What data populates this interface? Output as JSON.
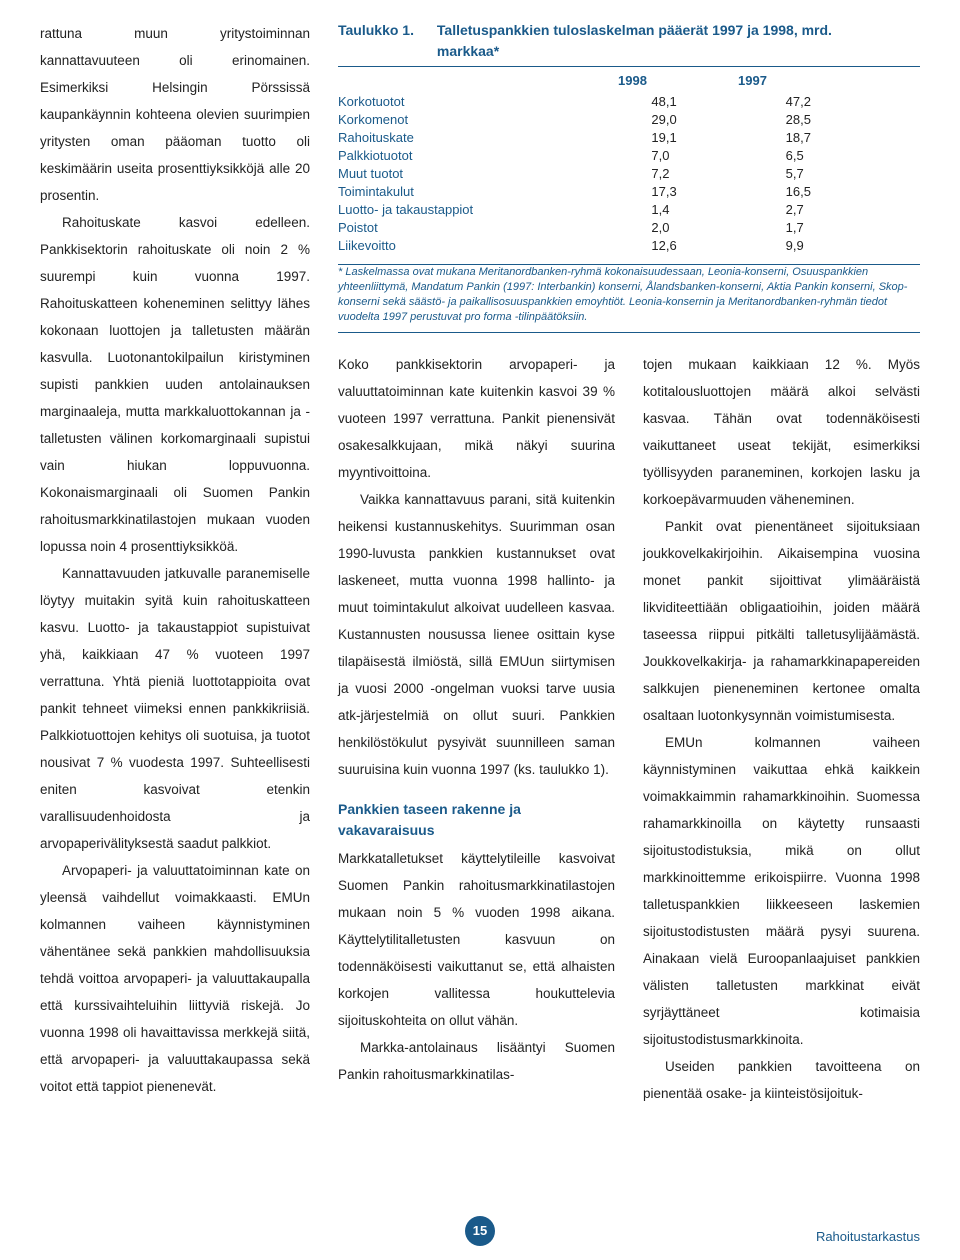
{
  "left_column": {
    "p1": "rattuna muun yritystoiminnan kannattavuuteen oli erinomainen. Esimerkiksi Helsingin Pörssissä kaupankäynnin kohteena olevien suurimpien yritysten oman pääoman tuotto oli keskimäärin useita prosenttiyksikköjä alle 20 prosentin.",
    "p2": "Rahoituskate kasvoi edelleen. Pankkisektorin rahoituskate oli noin 2 % suurempi kuin vuonna 1997. Rahoituskatteen koheneminen selittyy lähes kokonaan luottojen ja talletusten määrän kasvulla. Luotonantokilpailun kiristyminen supisti pankkien uuden antolainauksen marginaaleja, mutta markkaluottokannan ja -talletusten välinen korkomarginaali supistui vain hiukan loppuvuonna. Kokonaismarginaali oli Suomen Pankin rahoitusmarkkinatilastojen mukaan vuoden lopussa noin 4 prosenttiyksikköä.",
    "p3": "Kannattavuuden jatkuvalle paranemiselle löytyy muitakin syitä kuin rahoituskatteen kasvu. Luotto- ja takaustappiot supistuivat yhä, kaikkiaan 47 % vuoteen 1997 verrattuna. Yhtä pieniä luottotappioita ovat pankit tehneet viimeksi ennen pankkikriisiä. Palkkiotuottojen kehitys oli suotuisa, ja tuotot nousivat 7 % vuodesta 1997. Suhteellisesti eniten kasvoivat etenkin varallisuudenhoidosta ja arvopaperivälityksestä saadut palkkiot.",
    "p4": "Arvopaperi- ja valuuttatoiminnan kate on yleensä vaihdellut voimakkaasti. EMUn kolmannen vaiheen käynnistyminen vähentänee sekä pankkien mahdollisuuksia tehdä voittoa arvopaperi- ja valuuttakaupalla että kurssivaihteluihin liittyviä riskejä. Jo vuonna 1998 oli havaittavissa merkkejä siitä, että arvopaperi- ja valuuttakaupassa sekä voitot että tappiot pienenevät."
  },
  "table": {
    "title_prefix": "Taulukko 1.",
    "title_rest": "Talletuspankkien tuloslaskelman pääerät 1997 ja 1998, mrd. markkaa*",
    "year1": "1998",
    "year2": "1997",
    "rows": [
      {
        "label": "Korkotuotot",
        "v1": "48,1",
        "v2": "47,2"
      },
      {
        "label": "Korkomenot",
        "v1": "29,0",
        "v2": "28,5"
      },
      {
        "label": "Rahoituskate",
        "v1": "19,1",
        "v2": "18,7"
      },
      {
        "label": "Palkkiotuotot",
        "v1": "7,0",
        "v2": "6,5"
      },
      {
        "label": "Muut tuotot",
        "v1": "7,2",
        "v2": "5,7"
      },
      {
        "label": "Toimintakulut",
        "v1": "17,3",
        "v2": "16,5"
      },
      {
        "label": "Luotto- ja takaustappiot",
        "v1": "1,4",
        "v2": "2,7"
      },
      {
        "label": "Poistot",
        "v1": "2,0",
        "v2": "1,7"
      },
      {
        "label": "Liikevoitto",
        "v1": "12,6",
        "v2": "9,9"
      }
    ],
    "footnote": "* Laskelmassa ovat mukana Meritanordbanken-ryhmä kokonaisuudessaan, Leonia-konserni, Osuuspankkien yhteenliittymä, Mandatum Pankin (1997: Interbankin) konserni, Ålandsbanken-konserni, Aktia Pankin konserni, Skop-konserni sekä säästö- ja paikallisosuuspankkien emoyhtiöt. Leonia-konsernin ja Meritanordbanken-ryhmän tiedot vuodelta 1997 perustuvat pro forma -tilinpäätöksiin."
  },
  "mid_col": {
    "p1": "Koko pankkisektorin arvopaperi- ja valuuttatoiminnan kate kuitenkin kasvoi 39 % vuoteen 1997 verrattuna. Pankit pienensivät osakesalkkujaan, mikä näkyi suurina myyntivoittoina.",
    "p2": "Vaikka kannattavuus parani, sitä kuitenkin heikensi kustannuskehitys. Suurimman osan 1990-luvusta pankkien kustannukset ovat laskeneet, mutta vuonna 1998 hallinto- ja muut toimintakulut alkoivat uudelleen kasvaa. Kustannusten nousussa lienee osittain kyse tilapäisestä ilmiöstä, sillä EMUun siirtymisen ja vuosi 2000 -ongelman vuoksi tarve uusia atk-järjestelmiä on ollut suuri. Pankkien henkilöstökulut pysyivät suunnilleen saman suuruisina kuin vuonna 1997 (ks. taulukko 1).",
    "section": "Pankkien taseen rakenne ja vakavaraisuus",
    "p3": "Markkatalletukset käyttelytileille kasvoivat Suomen Pankin rahoitusmarkkinatilastojen mukaan noin 5 % vuoden 1998 aikana. Käyttelytilitalletusten kasvuun on todennäköisesti vaikuttanut se, että alhaisten korkojen vallitessa houkuttelevia sijoituskohteita on ollut vähän.",
    "p4": "Markka-antolainaus lisääntyi Suomen Pankin rahoitusmarkkinatilas-"
  },
  "right_col": {
    "p1": "tojen mukaan kaikkiaan 12 %. Myös kotitalousluottojen määrä alkoi selvästi kasvaa. Tähän ovat todennäköisesti vaikuttaneet useat tekijät, esimerkiksi työllisyyden paraneminen, korkojen lasku ja korkoepävarmuuden väheneminen.",
    "p2": "Pankit ovat pienentäneet sijoituksiaan joukkovelkakirjoihin. Aikaisempina vuosina monet pankit sijoittivat ylimääräistä likviditeettiään obligaatioihin, joiden määrä taseessa riippui pitkälti talletusylijäämästä. Joukkovelkakirja- ja rahamarkkinapapereiden salkkujen pieneneminen kertonee omalta osaltaan luotonkysynnän voimistumisesta.",
    "p3": "EMUn kolmannen vaiheen käynnistyminen vaikuttaa ehkä kaikkein voimakkaimmin rahamarkkinoihin. Suomessa rahamarkkinoilla on käytetty runsaasti sijoitustodistuksia, mikä on ollut markkinoittemme erikoispiirre. Vuonna 1998 talletuspankkien liikkeeseen laskemien sijoitustodistusten määrä pysyi suurena. Ainakaan vielä Euroopanlaajuiset pankkien välisten talletusten markkinat eivät syrjäyttäneet kotimaisia sijoitustodistusmarkkinoita.",
    "p4": "Useiden pankkien tavoitteena on pienentää osake- ja kiinteistösijoituk-"
  },
  "page_number": "15",
  "footer_brand": "Rahoitustarkastus",
  "colors": {
    "brand": "#1a5a8a",
    "text": "#222222",
    "bg": "#ffffff"
  }
}
